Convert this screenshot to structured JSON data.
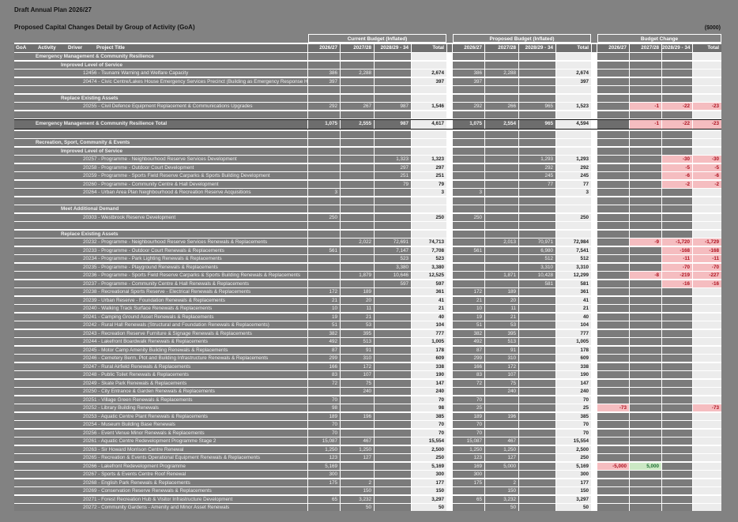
{
  "header": {
    "title": "Draft Annual Plan 2026/27",
    "subtitle": "Proposed Capital Changes Detail by Group of Activity (GoA)",
    "units_note": "($000)"
  },
  "columns": {
    "label_headers": [
      "GoA",
      "Activity",
      "Driver",
      "Project Title"
    ],
    "groups": [
      {
        "label": "Current Budget (Inflated)"
      },
      {
        "label": "Proposed Budget (Inflated)"
      },
      {
        "label": "Budget Change"
      }
    ],
    "year_headers": [
      "2026/27",
      "2027/28",
      "2028/29 - 34",
      "Total"
    ]
  },
  "colors": {
    "page_background": "#828282",
    "row_bar": "#7b7b7b",
    "total_column_background": "#ececec",
    "decrease_cell_background": "#f5bdc0",
    "decrease_text": "#ae1220",
    "increase_cell_background": "#cbe8c4",
    "increase_text": "#1e7033"
  },
  "rows": [
    {
      "t": "section",
      "label": "Emergency Management & Community Resilience"
    },
    {
      "t": "driver",
      "label": "Improved Level of Service"
    },
    {
      "t": "project",
      "label": "12456 - Tsunami Warning and Welfare Capacity",
      "cur": [
        "386",
        "2,288",
        "",
        "2,674"
      ],
      "prop": [
        "386",
        "2,288",
        "",
        "2,674"
      ],
      "chg": [
        "",
        "",
        "",
        ""
      ],
      "cls": [
        "",
        "",
        "",
        ""
      ]
    },
    {
      "t": "project",
      "label": "20474 - Civic Centre/Lakes House Emergency Services Precinct (Building as Emergency Response Hub)",
      "cur": [
        "397",
        "",
        "",
        "397"
      ],
      "prop": [
        "397",
        "",
        "",
        "397"
      ],
      "chg": [
        "",
        "",
        "",
        ""
      ],
      "cls": [
        "",
        "",
        "",
        ""
      ]
    },
    {
      "t": "blank"
    },
    {
      "t": "driver",
      "label": "Replace Existing Assets"
    },
    {
      "t": "project",
      "label": "20255 - Civil Defence Equipment Replacement & Communications Upgrades",
      "cur": [
        "292",
        "267",
        "987",
        "1,546"
      ],
      "prop": [
        "292",
        "266",
        "965",
        "1,523"
      ],
      "chg": [
        "",
        "-1",
        "-22",
        "-23"
      ],
      "cls": [
        "",
        "p",
        "p",
        "p"
      ]
    },
    {
      "t": "blank"
    },
    {
      "t": "total",
      "label": "Emergency Management & Community Resilience Total",
      "cur": [
        "1,075",
        "2,555",
        "987",
        "4,617"
      ],
      "prop": [
        "1,075",
        "2,554",
        "965",
        "4,594"
      ],
      "chg": [
        "",
        "-1",
        "-22",
        "-23"
      ],
      "cls": [
        "",
        "p",
        "p",
        "p"
      ]
    },
    {
      "t": "blank"
    },
    {
      "t": "section",
      "label": "Recreation, Sport, Community & Events"
    },
    {
      "t": "driver",
      "label": "Improved Level of Service"
    },
    {
      "t": "project",
      "label": "20257 - Programme - Neighbourhood Reserve Services Development",
      "cur": [
        "",
        "",
        "1,323",
        "1,323"
      ],
      "prop": [
        "",
        "",
        "1,293",
        "1,293"
      ],
      "chg": [
        "",
        "",
        "-30",
        "-30"
      ],
      "cls": [
        "",
        "",
        "p",
        "p"
      ]
    },
    {
      "t": "project",
      "label": "20258 - Programme - Outdoor Court Development",
      "cur": [
        "",
        "",
        "297",
        "297"
      ],
      "prop": [
        "",
        "",
        "292",
        "292"
      ],
      "chg": [
        "",
        "",
        "-5",
        "-5"
      ],
      "cls": [
        "",
        "",
        "p",
        "p"
      ]
    },
    {
      "t": "project",
      "label": "20259 - Programme - Sports Field Reserve Carparks & Sports Building Development",
      "cur": [
        "",
        "",
        "251",
        "251"
      ],
      "prop": [
        "",
        "",
        "245",
        "245"
      ],
      "chg": [
        "",
        "",
        "-6",
        "-6"
      ],
      "cls": [
        "",
        "",
        "p",
        "p"
      ]
    },
    {
      "t": "project",
      "label": "20260 - Programme - Community Centre & Hall Development",
      "cur": [
        "",
        "",
        "79",
        "79"
      ],
      "prop": [
        "",
        "",
        "77",
        "77"
      ],
      "chg": [
        "",
        "",
        "-2",
        "-2"
      ],
      "cls": [
        "",
        "",
        "p",
        "p"
      ]
    },
    {
      "t": "project",
      "label": "20264 - Urban Area Plan Neighbourhood & Recreation Reserve Acquisitions",
      "cur": [
        "3",
        "",
        "",
        "3"
      ],
      "prop": [
        "3",
        "",
        "",
        "3"
      ],
      "chg": [
        "",
        "",
        "",
        ""
      ],
      "cls": [
        "",
        "",
        "",
        ""
      ]
    },
    {
      "t": "blank"
    },
    {
      "t": "driver",
      "label": "Meet Additional Demand"
    },
    {
      "t": "project",
      "label": "20303 - Westbrook Reserve Development",
      "cur": [
        "250",
        "",
        "",
        "250"
      ],
      "prop": [
        "250",
        "",
        "",
        "250"
      ],
      "chg": [
        "",
        "",
        "",
        ""
      ],
      "cls": [
        "",
        "",
        "",
        ""
      ]
    },
    {
      "t": "blank"
    },
    {
      "t": "driver",
      "label": "Replace Existing Assets"
    },
    {
      "t": "project",
      "label": "20232 - Programme - Neighbourhood Reserve Services Renewals & Replacements",
      "cur": [
        "",
        "2,022",
        "72,691",
        "74,713"
      ],
      "prop": [
        "",
        "2,013",
        "70,971",
        "72,984"
      ],
      "chg": [
        "",
        "-9",
        "-1,720",
        "-1,729"
      ],
      "cls": [
        "",
        "p",
        "p",
        "p"
      ]
    },
    {
      "t": "project",
      "label": "20233 - Programme - Outdoor Court Renewals & Replacements",
      "cur": [
        "561",
        "",
        "7,147",
        "7,708"
      ],
      "prop": [
        "561",
        "",
        "6,980",
        "7,541"
      ],
      "chg": [
        "",
        "",
        "-168",
        "-168"
      ],
      "cls": [
        "",
        "",
        "p",
        "p"
      ]
    },
    {
      "t": "project",
      "label": "20234 - Programme - Park Lighting Renewals & Replacements",
      "cur": [
        "",
        "",
        "523",
        "523"
      ],
      "prop": [
        "",
        "",
        "512",
        "512"
      ],
      "chg": [
        "",
        "",
        "-11",
        "-11"
      ],
      "cls": [
        "",
        "",
        "p",
        "p"
      ]
    },
    {
      "t": "project",
      "label": "20235 - Programme - Playground Renewals & Replacements",
      "cur": [
        "",
        "",
        "3,380",
        "3,380"
      ],
      "prop": [
        "",
        "",
        "3,310",
        "3,310"
      ],
      "chg": [
        "",
        "",
        "-70",
        "-70"
      ],
      "cls": [
        "",
        "",
        "p",
        "p"
      ]
    },
    {
      "t": "project",
      "label": "20236 - Programme - Sports Field Reserve Carparks & Sports Building Renewals & Replacements",
      "cur": [
        "",
        "1,879",
        "10,646",
        "12,525"
      ],
      "prop": [
        "",
        "1,871",
        "10,428",
        "12,299"
      ],
      "chg": [
        "",
        "-8",
        "-219",
        "-227"
      ],
      "cls": [
        "",
        "p",
        "p",
        "p"
      ]
    },
    {
      "t": "project",
      "label": "20237 - Programme - Community Centre & Hall Renewals & Replacements",
      "cur": [
        "",
        "",
        "597",
        "597"
      ],
      "prop": [
        "",
        "",
        "581",
        "581"
      ],
      "chg": [
        "",
        "",
        "-16",
        "-16"
      ],
      "cls": [
        "",
        "",
        "p",
        "p"
      ]
    },
    {
      "t": "project",
      "label": "20238 - Recreational Sports Reserve - Electrical Renewals & Replacements",
      "cur": [
        "172",
        "189",
        "",
        "361"
      ],
      "prop": [
        "172",
        "189",
        "",
        "361"
      ],
      "chg": [
        "",
        "",
        "",
        ""
      ],
      "cls": [
        "",
        "",
        "",
        ""
      ]
    },
    {
      "t": "project",
      "label": "20239 - Urban Reserve - Foundation Renewals & Replacements",
      "cur": [
        "21",
        "20",
        "",
        "41"
      ],
      "prop": [
        "21",
        "20",
        "",
        "41"
      ],
      "chg": [
        "",
        "",
        "",
        ""
      ],
      "cls": [
        "",
        "",
        "",
        ""
      ]
    },
    {
      "t": "project",
      "label": "20240 - Walking Track Surface Renewals & Replacements",
      "cur": [
        "10",
        "11",
        "",
        "21"
      ],
      "prop": [
        "10",
        "11",
        "",
        "21"
      ],
      "chg": [
        "",
        "",
        "",
        ""
      ],
      "cls": [
        "",
        "",
        "",
        ""
      ]
    },
    {
      "t": "project",
      "label": "20241 - Camping Ground Asset Renewals & Replacements",
      "cur": [
        "19",
        "21",
        "",
        "40"
      ],
      "prop": [
        "19",
        "21",
        "",
        "40"
      ],
      "chg": [
        "",
        "",
        "",
        ""
      ],
      "cls": [
        "",
        "",
        "",
        ""
      ]
    },
    {
      "t": "project",
      "label": "20242 - Rural Hall Renewals (Structural and Foundation Renewals & Replacements)",
      "cur": [
        "51",
        "53",
        "",
        "104"
      ],
      "prop": [
        "51",
        "53",
        "",
        "104"
      ],
      "chg": [
        "",
        "",
        "",
        ""
      ],
      "cls": [
        "",
        "",
        "",
        ""
      ]
    },
    {
      "t": "project",
      "label": "20243 - Recreation Reserve Furniture & Signage Renewals & Replacements",
      "cur": [
        "382",
        "395",
        "",
        "777"
      ],
      "prop": [
        "382",
        "395",
        "",
        "777"
      ],
      "chg": [
        "",
        "",
        "",
        ""
      ],
      "cls": [
        "",
        "",
        "",
        ""
      ]
    },
    {
      "t": "project",
      "label": "20244 - Lakefront Boardwalk Renewals & Replacements",
      "cur": [
        "492",
        "513",
        "",
        "1,005"
      ],
      "prop": [
        "492",
        "513",
        "",
        "1,005"
      ],
      "chg": [
        "",
        "",
        "",
        ""
      ],
      "cls": [
        "",
        "",
        "",
        ""
      ]
    },
    {
      "t": "project",
      "label": "20245 - Motor Camp Amenity Building Renewals & Replacements",
      "cur": [
        "87",
        "91",
        "",
        "178"
      ],
      "prop": [
        "87",
        "91",
        "",
        "178"
      ],
      "chg": [
        "",
        "",
        "",
        ""
      ],
      "cls": [
        "",
        "",
        "",
        ""
      ]
    },
    {
      "t": "project",
      "label": "20246 - Cemetery Berm, Plot and Building Infrastructure Renewals & Replacements",
      "cur": [
        "299",
        "310",
        "",
        "609"
      ],
      "prop": [
        "299",
        "310",
        "",
        "609"
      ],
      "chg": [
        "",
        "",
        "",
        ""
      ],
      "cls": [
        "",
        "",
        "",
        ""
      ]
    },
    {
      "t": "project",
      "label": "20247 - Rural Airfield Renewals & Replacements",
      "cur": [
        "166",
        "172",
        "",
        "338"
      ],
      "prop": [
        "166",
        "172",
        "",
        "338"
      ],
      "chg": [
        "",
        "",
        "",
        ""
      ],
      "cls": [
        "",
        "",
        "",
        ""
      ]
    },
    {
      "t": "project",
      "label": "20248 - Public Toilet Renewals & Replacements",
      "cur": [
        "83",
        "107",
        "",
        "190"
      ],
      "prop": [
        "83",
        "107",
        "",
        "190"
      ],
      "chg": [
        "",
        "",
        "",
        ""
      ],
      "cls": [
        "",
        "",
        "",
        ""
      ]
    },
    {
      "t": "project",
      "label": "20249 - Skate Park Renewals & Replacements",
      "cur": [
        "72",
        "75",
        "",
        "147"
      ],
      "prop": [
        "72",
        "75",
        "",
        "147"
      ],
      "chg": [
        "",
        "",
        "",
        ""
      ],
      "cls": [
        "",
        "",
        "",
        ""
      ]
    },
    {
      "t": "project",
      "label": "20250 - City Entrance & Garden Renewals & Replacements",
      "cur": [
        "",
        "240",
        "",
        "240"
      ],
      "prop": [
        "",
        "240",
        "",
        "240"
      ],
      "chg": [
        "",
        "",
        "",
        ""
      ],
      "cls": [
        "",
        "",
        "",
        ""
      ]
    },
    {
      "t": "project",
      "label": "20251 - Village Green Renewals & Replacements",
      "cur": [
        "70",
        "",
        "",
        "70"
      ],
      "prop": [
        "70",
        "",
        "",
        "70"
      ],
      "chg": [
        "",
        "",
        "",
        ""
      ],
      "cls": [
        "",
        "",
        "",
        ""
      ]
    },
    {
      "t": "project",
      "label": "20252 - Library Building Renewals",
      "cur": [
        "98",
        "",
        "",
        "98"
      ],
      "prop": [
        "25",
        "",
        "",
        "25"
      ],
      "chg": [
        "-73",
        "",
        "",
        "-73"
      ],
      "cls": [
        "p",
        "",
        "",
        "p"
      ]
    },
    {
      "t": "project",
      "label": "20253 - Aquatic Centre Plant Renewals & Replacements",
      "cur": [
        "189",
        "196",
        "",
        "385"
      ],
      "prop": [
        "189",
        "196",
        "",
        "385"
      ],
      "chg": [
        "",
        "",
        "",
        ""
      ],
      "cls": [
        "",
        "",
        "",
        ""
      ]
    },
    {
      "t": "project",
      "label": "20254 - Museum Building Base Renewals",
      "cur": [
        "70",
        "",
        "",
        "70"
      ],
      "prop": [
        "70",
        "",
        "",
        "70"
      ],
      "chg": [
        "",
        "",
        "",
        ""
      ],
      "cls": [
        "",
        "",
        "",
        ""
      ]
    },
    {
      "t": "project",
      "label": "20256 - Event Venue Minor Renewals & Replacements",
      "cur": [
        "70",
        "",
        "",
        "70"
      ],
      "prop": [
        "70",
        "",
        "",
        "70"
      ],
      "chg": [
        "",
        "",
        "",
        ""
      ],
      "cls": [
        "",
        "",
        "",
        ""
      ]
    },
    {
      "t": "project",
      "label": "20261 - Aquatic Centre Redevelopment Programme Stage 2",
      "cur": [
        "15,087",
        "467",
        "",
        "15,554"
      ],
      "prop": [
        "15,087",
        "467",
        "",
        "15,554"
      ],
      "chg": [
        "",
        "",
        "",
        ""
      ],
      "cls": [
        "",
        "",
        "",
        ""
      ]
    },
    {
      "t": "project",
      "label": "20263 - Sir Howard Morrison Centre Renewal",
      "cur": [
        "1,250",
        "1,250",
        "",
        "2,500"
      ],
      "prop": [
        "1,250",
        "1,250",
        "",
        "2,500"
      ],
      "chg": [
        "",
        "",
        "",
        ""
      ],
      "cls": [
        "",
        "",
        "",
        ""
      ]
    },
    {
      "t": "project",
      "label": "20265 - Recreation & Events Operational Equipment Renewals & Replacements",
      "cur": [
        "123",
        "127",
        "",
        "250"
      ],
      "prop": [
        "123",
        "127",
        "",
        "250"
      ],
      "chg": [
        "",
        "",
        "",
        ""
      ],
      "cls": [
        "",
        "",
        "",
        ""
      ]
    },
    {
      "t": "project",
      "label": "20266 - Lakefront Redevelopment Programme",
      "cur": [
        "5,169",
        "",
        "",
        "5,169"
      ],
      "prop": [
        "169",
        "5,000",
        "",
        "5,169"
      ],
      "chg": [
        "-5,000",
        "5,000",
        "",
        ""
      ],
      "cls": [
        "p",
        "g",
        "",
        ""
      ]
    },
    {
      "t": "project",
      "label": "20267 - Sports & Events Centre Roof Renewal",
      "cur": [
        "300",
        "",
        "",
        "300"
      ],
      "prop": [
        "300",
        "",
        "",
        "300"
      ],
      "chg": [
        "",
        "",
        "",
        ""
      ],
      "cls": [
        "",
        "",
        "",
        ""
      ]
    },
    {
      "t": "project",
      "label": "20268 - English Park Renewals & Replacements",
      "cur": [
        "175",
        "2",
        "",
        "177"
      ],
      "prop": [
        "175",
        "2",
        "",
        "177"
      ],
      "chg": [
        "",
        "",
        "",
        ""
      ],
      "cls": [
        "",
        "",
        "",
        ""
      ]
    },
    {
      "t": "project",
      "label": "20269 - Conservation Reserve Renewals & Replacements",
      "cur": [
        "",
        "150",
        "",
        "150"
      ],
      "prop": [
        "",
        "150",
        "",
        "150"
      ],
      "chg": [
        "",
        "",
        "",
        ""
      ],
      "cls": [
        "",
        "",
        "",
        ""
      ]
    },
    {
      "t": "project",
      "label": "20271 - Forest Recreation Hub & Visitor Infrastructure Development",
      "cur": [
        "65",
        "3,232",
        "",
        "3,297"
      ],
      "prop": [
        "65",
        "3,232",
        "",
        "3,297"
      ],
      "chg": [
        "",
        "",
        "",
        ""
      ],
      "cls": [
        "",
        "",
        "",
        ""
      ]
    },
    {
      "t": "project",
      "label": "20272 - Community Gardens - Amenity and Minor Asset Renewals",
      "cur": [
        "",
        "50",
        "",
        "50"
      ],
      "prop": [
        "",
        "50",
        "",
        "50"
      ],
      "chg": [
        "",
        "",
        "",
        ""
      ],
      "cls": [
        "",
        "",
        "",
        ""
      ]
    }
  ]
}
